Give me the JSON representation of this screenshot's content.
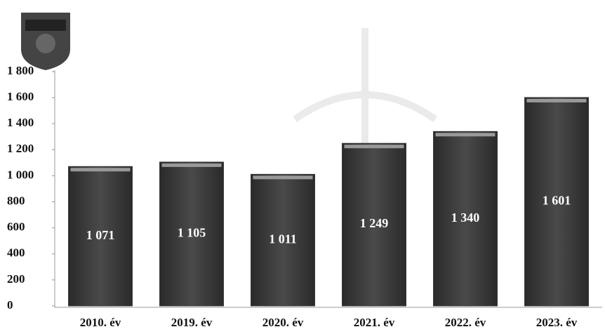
{
  "chart_data": {
    "type": "bar",
    "categories": [
      "2010. év",
      "2019. év",
      "2020. év",
      "2021. év",
      "2022. év",
      "2023. év"
    ],
    "values": [
      1071,
      1105,
      1011,
      1249,
      1340,
      1601
    ],
    "value_labels": [
      "1 071",
      "1 105",
      "1 011",
      "1 249",
      "1 340",
      "1 601"
    ],
    "color": "#3a3a3a",
    "ylim": [
      0,
      1800
    ],
    "yticks": [
      0,
      200,
      400,
      600,
      800,
      {
        "value": 1000,
        "label": "1 000"
      },
      {
        "value": 1200,
        "label": "1 200"
      },
      {
        "value": 1400,
        "label": "1 400"
      },
      {
        "value": 1600,
        "label": "1 600"
      },
      {
        "value": 1800,
        "label": "1 800"
      }
    ],
    "grid": false
  }
}
